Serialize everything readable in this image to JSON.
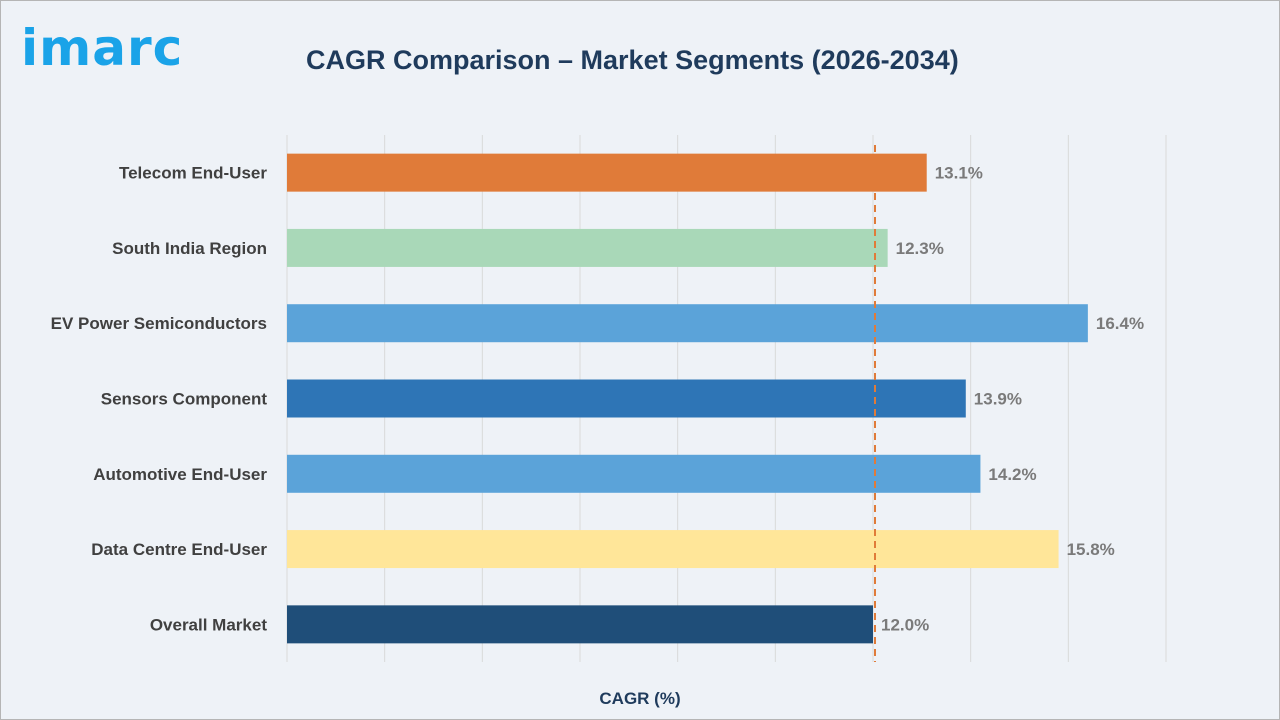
{
  "header": {
    "logo_text": "imarc",
    "title": "CAGR Comparison – Market Segments (2026-2034)"
  },
  "colors": {
    "logo": "#1aa3e8",
    "reference_line": "#e07b39",
    "grid": "#d9d9d9"
  },
  "chart_data": {
    "type": "bar",
    "orientation": "horizontal",
    "title": "CAGR Comparison – Market Segments (2026-2034)",
    "xlabel": "CAGR (%)",
    "ylabel": "",
    "xlim": [
      0,
      18
    ],
    "grid": true,
    "reference_line": {
      "value": 12.0
    },
    "categories": [
      "Telecom End-User",
      "South India Region",
      "EV Power Semiconductors",
      "Sensors Component",
      "Automotive End-User",
      "Data Centre End-User",
      "Overall Market"
    ],
    "values": [
      13.1,
      12.3,
      16.4,
      13.9,
      14.2,
      15.8,
      12.0
    ],
    "data_labels": [
      "13.1%",
      "12.3%",
      "16.4%",
      "13.9%",
      "14.2%",
      "15.8%",
      "12.0%"
    ],
    "colors": [
      "#e07b39",
      "#a9d8b8",
      "#5ba3d9",
      "#2e75b6",
      "#5ba3d9",
      "#ffe699",
      "#1f4e79"
    ]
  }
}
